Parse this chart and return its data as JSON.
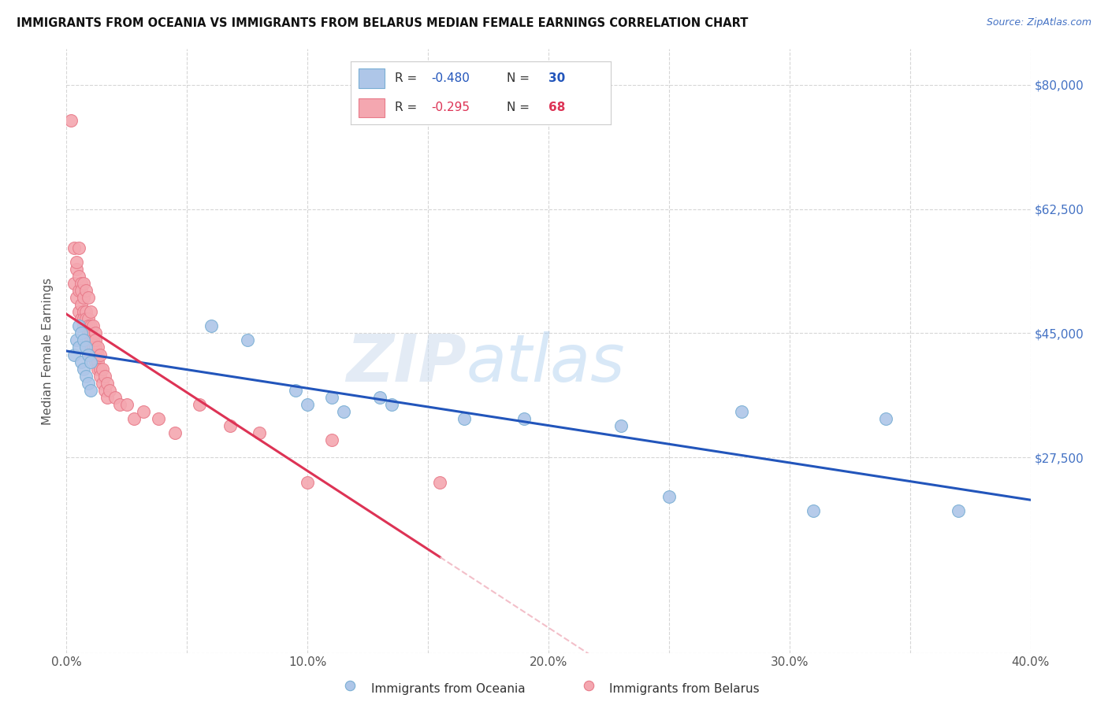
{
  "title": "IMMIGRANTS FROM OCEANIA VS IMMIGRANTS FROM BELARUS MEDIAN FEMALE EARNINGS CORRELATION CHART",
  "source": "Source: ZipAtlas.com",
  "ylabel": "Median Female Earnings",
  "watermark_zip": "ZIP",
  "watermark_atlas": "atlas",
  "xlim": [
    0.0,
    0.4
  ],
  "ylim": [
    0,
    85000
  ],
  "yticks": [
    0,
    27500,
    45000,
    62500,
    80000
  ],
  "ytick_labels": [
    "",
    "$27,500",
    "$45,000",
    "$62,500",
    "$80,000"
  ],
  "xtick_labels": [
    "0.0%",
    "",
    "10.0%",
    "",
    "20.0%",
    "",
    "30.0%",
    "",
    "40.0%"
  ],
  "xticks": [
    0.0,
    0.05,
    0.1,
    0.15,
    0.2,
    0.25,
    0.3,
    0.35,
    0.4
  ],
  "oceania_color": "#aec6e8",
  "oceania_edge": "#7aafd4",
  "belarus_color": "#f4a7b0",
  "belarus_edge": "#e87b8a",
  "line_oceania_color": "#2255bb",
  "line_belarus_color": "#dd3355",
  "line_belarus_ext_color": "#f0b0bc",
  "R_oceania": -0.48,
  "N_oceania": 30,
  "R_belarus": -0.295,
  "N_belarus": 68,
  "oceania_x": [
    0.003,
    0.004,
    0.005,
    0.005,
    0.006,
    0.006,
    0.007,
    0.007,
    0.008,
    0.008,
    0.009,
    0.009,
    0.01,
    0.01,
    0.06,
    0.075,
    0.095,
    0.1,
    0.11,
    0.115,
    0.13,
    0.135,
    0.165,
    0.19,
    0.23,
    0.25,
    0.28,
    0.31,
    0.34,
    0.37
  ],
  "oceania_y": [
    42000,
    44000,
    43000,
    46000,
    41000,
    45000,
    44000,
    40000,
    43000,
    39000,
    42000,
    38000,
    41000,
    37000,
    46000,
    44000,
    37000,
    35000,
    36000,
    34000,
    36000,
    35000,
    33000,
    33000,
    32000,
    22000,
    34000,
    20000,
    33000,
    20000
  ],
  "belarus_x": [
    0.002,
    0.003,
    0.003,
    0.004,
    0.004,
    0.004,
    0.005,
    0.005,
    0.005,
    0.005,
    0.006,
    0.006,
    0.006,
    0.006,
    0.007,
    0.007,
    0.007,
    0.007,
    0.007,
    0.008,
    0.008,
    0.008,
    0.008,
    0.009,
    0.009,
    0.009,
    0.009,
    0.009,
    0.01,
    0.01,
    0.01,
    0.01,
    0.01,
    0.011,
    0.011,
    0.011,
    0.012,
    0.012,
    0.012,
    0.012,
    0.012,
    0.013,
    0.013,
    0.013,
    0.013,
    0.014,
    0.014,
    0.014,
    0.015,
    0.015,
    0.016,
    0.016,
    0.017,
    0.017,
    0.018,
    0.02,
    0.022,
    0.025,
    0.028,
    0.032,
    0.038,
    0.045,
    0.055,
    0.068,
    0.08,
    0.1,
    0.11,
    0.155
  ],
  "belarus_y": [
    75000,
    57000,
    52000,
    54000,
    50000,
    55000,
    53000,
    51000,
    48000,
    57000,
    52000,
    49000,
    47000,
    51000,
    50000,
    48000,
    52000,
    47000,
    46000,
    48000,
    51000,
    46000,
    47000,
    47000,
    45000,
    50000,
    46000,
    43000,
    46000,
    48000,
    44000,
    42000,
    45000,
    44000,
    46000,
    43000,
    45000,
    43000,
    41000,
    44000,
    42000,
    42000,
    41000,
    40000,
    43000,
    40000,
    42000,
    39000,
    40000,
    38000,
    39000,
    37000,
    38000,
    36000,
    37000,
    36000,
    35000,
    35000,
    33000,
    34000,
    33000,
    31000,
    35000,
    32000,
    31000,
    24000,
    30000,
    24000
  ]
}
